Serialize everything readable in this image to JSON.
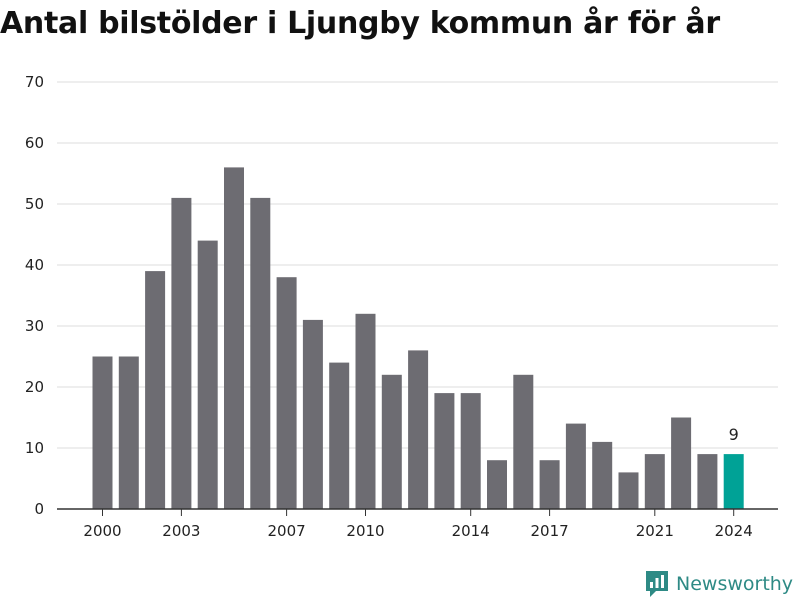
{
  "chart_data": {
    "type": "bar",
    "title": "Antal bilstölder i Ljungby kommun år för år",
    "xlabel": "",
    "ylabel": "",
    "categories": [
      2000,
      2001,
      2002,
      2003,
      2004,
      2005,
      2006,
      2007,
      2008,
      2009,
      2010,
      2011,
      2012,
      2013,
      2014,
      2015,
      2016,
      2017,
      2018,
      2019,
      2020,
      2021,
      2022,
      2023,
      2024
    ],
    "values": [
      25,
      25,
      39,
      51,
      44,
      56,
      51,
      38,
      31,
      24,
      32,
      22,
      26,
      19,
      19,
      8,
      22,
      8,
      14,
      11,
      6,
      9,
      15,
      9,
      9
    ],
    "ylim": [
      0,
      70
    ],
    "yticks": [
      0,
      10,
      20,
      30,
      40,
      50,
      60,
      70
    ],
    "xticks": [
      2000,
      2003,
      2007,
      2010,
      2014,
      2017,
      2021,
      2024
    ],
    "highlight_category": 2024,
    "highlight_label": "9",
    "grid": "horizontal",
    "colors": {
      "bar": "#6d6c72",
      "highlight": "#00a296",
      "grid": "#dddddd",
      "axis": "#333333"
    }
  },
  "branding": {
    "name": "Newsworthy",
    "icon": "newsworthy-logo-icon",
    "color": "#2e8a85"
  }
}
